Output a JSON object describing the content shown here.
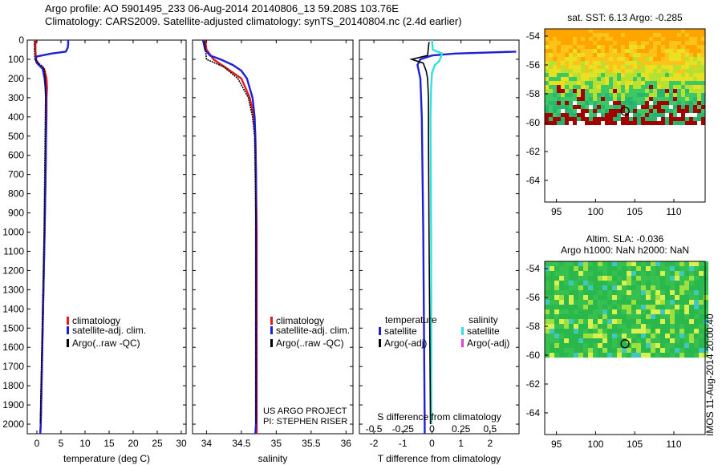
{
  "header": {
    "line1": "Argo profile: AO 5901495_233 06-Aug-2014 20140806_13 59.208S 103.76E",
    "line2": "Climatology: CARS2009. Satellite-adjusted climatology: synTS_20140804.nc (2.4d earlier)"
  },
  "colors": {
    "climatology": "#e31a1c",
    "satellite": "#1f1fd6",
    "argo": "#000000",
    "sal_satellite": "#33e0e0",
    "sal_argo": "#e040e0"
  },
  "chart_data": [
    {
      "type": "line",
      "id": "temperature",
      "xlabel": "temperature (deg C)",
      "ylabel": "",
      "xlim": [
        -2,
        31
      ],
      "ylim": [
        2050,
        0
      ],
      "xticks": [
        0,
        5,
        10,
        15,
        20,
        25,
        30
      ],
      "yticks": [
        0,
        100,
        200,
        300,
        400,
        500,
        600,
        700,
        800,
        900,
        1000,
        1100,
        1200,
        1300,
        1400,
        1500,
        1600,
        1700,
        1800,
        1900,
        2000
      ],
      "legend": [
        "climatology",
        "satellite-adj. clim.",
        "Argo(..raw -QC)"
      ],
      "series": [
        {
          "name": "climatology",
          "color": "climatology",
          "depth": [
            0,
            50,
            100,
            130,
            150,
            200,
            250,
            300,
            400,
            500,
            700,
            1000,
            1500,
            2000,
            2050
          ],
          "values": [
            -0.3,
            -0.3,
            -0.2,
            0.5,
            1.5,
            2.0,
            2.1,
            2.0,
            2.0,
            1.9,
            1.8,
            1.6,
            1.2,
            0.8,
            0.7
          ]
        },
        {
          "name": "satellite-adj. clim.",
          "color": "satellite",
          "depth": [
            0,
            20,
            40,
            60,
            70,
            85,
            100,
            120,
            150,
            200,
            250,
            300,
            400,
            500,
            700,
            1000,
            1500,
            2000,
            2050
          ],
          "values": [
            6.5,
            6.5,
            6.4,
            6.0,
            3.0,
            0.0,
            -0.3,
            0.0,
            1.2,
            1.6,
            1.8,
            1.9,
            1.9,
            1.9,
            1.8,
            1.6,
            1.2,
            0.8,
            0.7
          ]
        },
        {
          "name": "Argo(..raw -QC)",
          "color": "argo",
          "depth": [
            5,
            50,
            100,
            120,
            140,
            160,
            200,
            300,
            500,
            1000,
            1500,
            2000
          ],
          "values": [
            -0.5,
            -0.5,
            -0.4,
            0.3,
            1.3,
            1.6,
            1.7,
            1.8,
            1.7,
            1.5,
            1.1,
            0.7
          ]
        }
      ]
    },
    {
      "type": "line",
      "id": "salinity",
      "xlabel": "salinity",
      "ylabel": "",
      "xlim": [
        33.8,
        36.1
      ],
      "ylim": [
        2050,
        0
      ],
      "xticks": [
        34,
        34.5,
        35,
        35.5,
        36
      ],
      "legend": [
        "climatology",
        "satellite-adj. clim.",
        "Argo(..raw -QC)"
      ],
      "series": [
        {
          "name": "climatology",
          "color": "climatology",
          "depth": [
            0,
            50,
            100,
            150,
            200,
            300,
            400,
            500,
            700,
            1000,
            1500,
            2000,
            2050
          ],
          "values": [
            33.98,
            34.0,
            34.1,
            34.3,
            34.5,
            34.62,
            34.68,
            34.7,
            34.71,
            34.72,
            34.72,
            34.72,
            34.72
          ]
        },
        {
          "name": "satellite-adj. clim.",
          "color": "satellite",
          "depth": [
            0,
            50,
            80,
            100,
            130,
            160,
            200,
            300,
            400,
            500,
            700,
            1000,
            1500,
            2000,
            2050
          ],
          "values": [
            33.95,
            33.98,
            34.05,
            34.2,
            34.38,
            34.5,
            34.58,
            34.66,
            34.69,
            34.7,
            34.71,
            34.71,
            34.71,
            34.71,
            34.7
          ]
        },
        {
          "name": "Argo(..raw -QC)",
          "color": "argo",
          "depth": [
            5,
            100,
            140,
            200,
            300,
            400,
            500,
            1000,
            1500,
            2000
          ],
          "values": [
            33.97,
            34.0,
            34.25,
            34.45,
            34.6,
            34.66,
            34.69,
            34.71,
            34.71,
            34.71
          ]
        }
      ]
    },
    {
      "type": "line",
      "id": "difference",
      "xlabel": "T difference from climatology",
      "xlabel2": "S difference from climatology",
      "ylabel": "",
      "xlim": [
        -2.5,
        3
      ],
      "ylim": [
        2050,
        0
      ],
      "xticks": [
        -2,
        -1,
        0,
        1,
        2
      ],
      "xticks_top": [
        -0.5,
        -0.25,
        0,
        0.25,
        0.5
      ],
      "legend_headers": [
        "temperature",
        "salinity"
      ],
      "legend": [
        "satellite",
        "Argo(-adj)",
        "satellite",
        "Argo(-adj)"
      ],
      "series": [
        {
          "name": "satellite",
          "group": "temperature",
          "color": "satellite",
          "depth": [
            60,
            70,
            80,
            100,
            130,
            200,
            400,
            1000,
            2000,
            2050
          ],
          "values": [
            2.9,
            0.8,
            0.0,
            -0.4,
            -0.5,
            -0.4,
            -0.35,
            -0.3,
            -0.25,
            -0.25
          ]
        },
        {
          "name": "satellite",
          "group": "salinity",
          "color": "sal_satellite",
          "depth": [
            0,
            50,
            70,
            90,
            110,
            130,
            170,
            250,
            400,
            1000,
            2000
          ],
          "values": [
            0.0,
            0.03,
            0.35,
            0.3,
            0.25,
            0.1,
            0.0,
            -0.03,
            -0.05,
            -0.03,
            -0.02
          ]
        },
        {
          "name": "Argo(-adj)",
          "group": "temperature",
          "color": "argo",
          "depth": [
            10,
            80,
            100,
            120,
            160,
            200,
            300,
            500,
            1000,
            2000
          ],
          "values": [
            -0.1,
            -0.15,
            -0.7,
            -0.3,
            -0.2,
            -0.15,
            -0.12,
            -0.12,
            -0.1,
            -0.05
          ]
        }
      ]
    },
    {
      "type": "heatmap",
      "id": "sst",
      "title": "sat. SST: 6.13 Argo: -0.285",
      "xlim": [
        93.5,
        114
      ],
      "ylim": [
        -65.5,
        -53.5
      ],
      "xticks": [
        95,
        100,
        105,
        110
      ],
      "yticks": [
        -54,
        -56,
        -58,
        -60,
        -62,
        -64
      ],
      "data_ylim": [
        -60,
        -53.5
      ],
      "marker": {
        "lon": 103.76,
        "lat": -59.208
      }
    },
    {
      "type": "heatmap",
      "id": "sla",
      "title": "Altim. SLA: -0.036",
      "title2": "Argo h1000: NaN h2000: NaN",
      "xlim": [
        93.5,
        114
      ],
      "ylim": [
        -65.5,
        -53.5
      ],
      "xticks": [
        95,
        100,
        105,
        110
      ],
      "yticks": [
        -54,
        -56,
        -58,
        -60,
        -62,
        -64
      ],
      "data_ylim": [
        -60,
        -53.5
      ],
      "marker": {
        "lon": 103.76,
        "lat": -59.208
      }
    }
  ],
  "annotations": {
    "project": "US ARGO PROJECT",
    "pi": "PI: STEPHEN RISER",
    "credit": "IMOS 11-Aug-2014 20:00:40"
  }
}
